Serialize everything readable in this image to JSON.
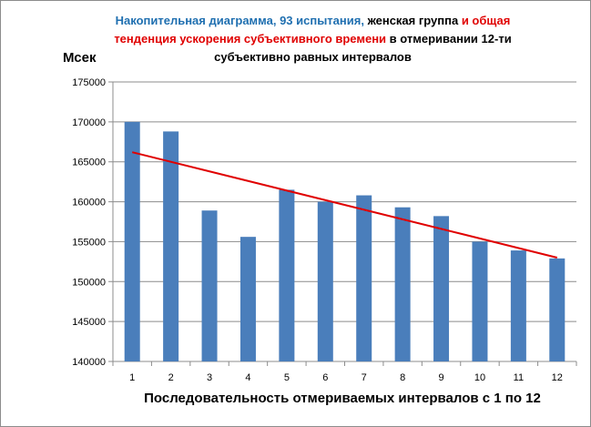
{
  "chart_data": {
    "type": "bar",
    "title": {
      "part1": "Накопительная диаграмма, 93 испытания,",
      "part2": " женская группа ",
      "part3": "и общая",
      "part4": "тенденция ускорения субъективного времени",
      "part5": " в отмеривании 12-ти",
      "part6": "субъективно равных интервалов"
    },
    "ylabel": "Мсек",
    "xlabel": "Последовательность отмериваемых интервалов с 1 по 12",
    "categories": [
      "1",
      "2",
      "3",
      "4",
      "5",
      "6",
      "7",
      "8",
      "9",
      "10",
      "11",
      "12"
    ],
    "values": [
      170000,
      168800,
      158900,
      155600,
      161500,
      160000,
      160800,
      159300,
      158200,
      155000,
      153900,
      152900
    ],
    "ylim": [
      140000,
      175000
    ],
    "yticks": [
      "140000",
      "145000",
      "150000",
      "155000",
      "160000",
      "165000",
      "170000",
      "175000"
    ],
    "grid": true,
    "trendline": {
      "start": 166200,
      "end": 153000
    },
    "colors": {
      "bar": "#4a7ebb",
      "trend": "#e00000",
      "grid": "#8c8c8c"
    }
  }
}
